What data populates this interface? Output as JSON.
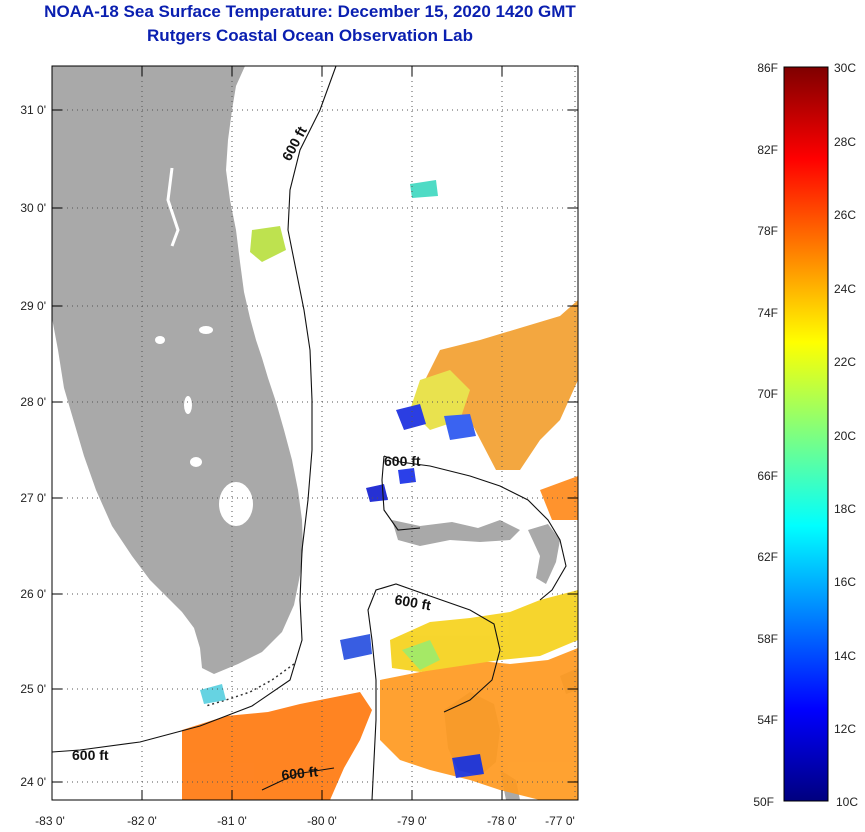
{
  "title": {
    "line1": "NOAA-18 Sea Surface Temperature:  December 15, 2020 1420 GMT",
    "line2": "Rutgers Coastal Ocean Observation Lab"
  },
  "map": {
    "lat_labels": [
      "31 0'",
      "30 0'",
      "29 0'",
      "28 0'",
      "27 0'",
      "26 0'",
      "25 0'",
      "24 0'"
    ],
    "lon_labels": [
      "-83 0'",
      "-82 0'",
      "-81 0'",
      "-80 0'",
      "-79 0'",
      "-78 0'",
      "-77 0'"
    ],
    "contour_labels": [
      "600 ft",
      "600 ft",
      "600 ft",
      "600 ft",
      "600 ft"
    ],
    "land_color": "#a9a9a9",
    "water_color": "#ffffff"
  },
  "colorbar": {
    "f_labels": [
      "86F",
      "82F",
      "78F",
      "74F",
      "70F",
      "66F",
      "62F",
      "58F",
      "54F",
      "50F"
    ],
    "c_labels": [
      "30C",
      "28C",
      "26C",
      "24C",
      "22C",
      "20C",
      "18C",
      "16C",
      "14C",
      "12C",
      "10C"
    ],
    "colors": [
      "#00007f",
      "#0000ff",
      "#007fff",
      "#00ffff",
      "#7fff7f",
      "#ffff00",
      "#ff7f00",
      "#ff0000",
      "#7f0000"
    ]
  }
}
